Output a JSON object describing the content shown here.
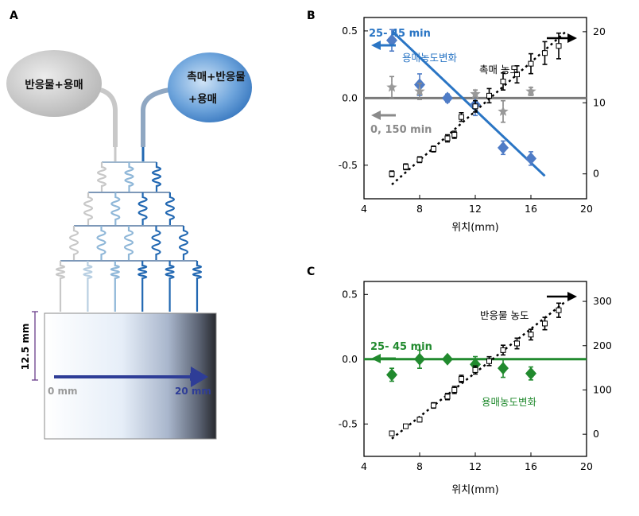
{
  "panel_a": {
    "label": "A",
    "left_bubble": "반응물+용매",
    "right_bubble_line1": "촉매+반응물",
    "right_bubble_line2": "+용매",
    "scale_bar_label": "12.5 mm",
    "arrow_start_label": "0 mm",
    "arrow_end_label": "20 mm",
    "colors": {
      "gray": "#c8c8c8",
      "light_blue": "#8fb7d8",
      "blue": "#2268b2",
      "dark_blue": "#2e3d97"
    }
  },
  "chart_data": [
    {
      "type": "scatter",
      "panel_label": "B",
      "xlabel": "위치(mm)",
      "xticks": [
        4,
        8,
        12,
        16,
        20
      ],
      "xlim": [
        4,
        20
      ],
      "yleft_ticks": [
        "0.5",
        "0.0",
        "-0.5"
      ],
      "yleft_lim": [
        -0.75,
        0.6
      ],
      "yright_ticks": [
        20,
        10,
        0
      ],
      "yright_lim": [
        -3.5,
        22
      ],
      "annotations": {
        "time_25_45": "25- 45 min",
        "time_0_150": "0, 150 min",
        "solvent_label": "용매농도변화",
        "catalyst_label": "촉매 농도"
      },
      "series": [
        {
          "name": "용매농도변화 (25-45 min)",
          "axis": "left",
          "color": "#4f7cc6",
          "marker": "diamond",
          "x": [
            6,
            8,
            10,
            12,
            14,
            16
          ],
          "y": [
            0.43,
            0.1,
            0.0,
            -0.05,
            -0.37,
            -0.45
          ],
          "err": [
            0.08,
            0.08,
            0.03,
            0.08,
            0.05,
            0.05
          ]
        },
        {
          "name": "0, 150 min",
          "axis": "left",
          "color": "#888888",
          "marker": "star",
          "x": [
            6,
            8,
            12,
            14,
            16
          ],
          "y": [
            0.08,
            0.05,
            0.03,
            -0.1,
            0.05
          ],
          "err": [
            0.08,
            0.06,
            0.03,
            0.08,
            0.03
          ]
        },
        {
          "name": "촉매 농도",
          "axis": "right",
          "color": "#000000",
          "marker": "square",
          "x": [
            6,
            7,
            8,
            9,
            10,
            10.5,
            11,
            12,
            13,
            14,
            15,
            16,
            17,
            18
          ],
          "y": [
            0,
            1,
            2,
            3.5,
            5,
            5.5,
            8,
            9.5,
            11,
            13,
            14,
            15.5,
            17,
            18
          ],
          "err": [
            0.4,
            0.4,
            0.4,
            0.4,
            0.5,
            0.5,
            0.6,
            0.8,
            1.0,
            1.2,
            1.2,
            1.4,
            1.6,
            1.8
          ]
        }
      ],
      "fit_lines": {
        "blue": {
          "from": [
            6,
            0.5
          ],
          "to": [
            17,
            -0.58
          ]
        },
        "gray": {
          "from": [
            4,
            0.0
          ],
          "to": [
            20,
            0.0
          ]
        },
        "black": {
          "from": [
            6,
            -1.5
          ],
          "to": [
            18.5,
            20
          ]
        }
      }
    },
    {
      "type": "scatter",
      "panel_label": "C",
      "xlabel": "위치(mm)",
      "xticks": [
        4,
        8,
        12,
        16,
        20
      ],
      "xlim": [
        4,
        20
      ],
      "yleft_ticks": [
        "0.5",
        "0.0",
        "-0.5"
      ],
      "yleft_lim": [
        -0.75,
        0.6
      ],
      "yright_ticks": [
        300,
        200,
        100,
        0
      ],
      "yright_lim": [
        -50,
        345
      ],
      "annotations": {
        "time_25_45": "25- 45 min",
        "solvent_label": "용매농도변화",
        "reactant_label": "반응물 농도"
      },
      "series": [
        {
          "name": "용매농도변화",
          "axis": "left",
          "color": "#218a2e",
          "marker": "diamond",
          "x": [
            6,
            8,
            10,
            12,
            14,
            16
          ],
          "y": [
            -0.12,
            0.0,
            0.0,
            -0.04,
            -0.07,
            -0.11
          ],
          "err": [
            0.05,
            0.07,
            0.02,
            0.06,
            0.07,
            0.05
          ]
        },
        {
          "name": "반응물 농도",
          "axis": "right",
          "color": "#000000",
          "marker": "square",
          "x": [
            6,
            7,
            8,
            9,
            10,
            10.5,
            11,
            12,
            13,
            14,
            15,
            16,
            17,
            18
          ],
          "y": [
            2,
            18,
            33,
            65,
            85,
            100,
            125,
            145,
            165,
            190,
            205,
            225,
            250,
            280
          ],
          "err": [
            4,
            4,
            5,
            6,
            7,
            8,
            8,
            9,
            10,
            11,
            12,
            12,
            14,
            16
          ]
        }
      ],
      "fit_lines": {
        "green": {
          "from": [
            4,
            0.0
          ],
          "to": [
            20,
            0.0
          ]
        },
        "black": {
          "from": [
            6,
            -10
          ],
          "to": [
            18.5,
            300
          ]
        }
      }
    }
  ]
}
